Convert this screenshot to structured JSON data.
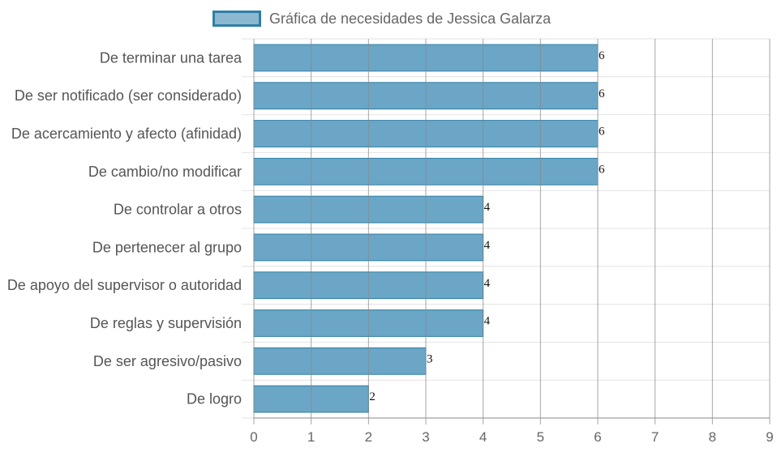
{
  "chart_data": {
    "type": "bar",
    "orientation": "horizontal",
    "categories": [
      "De terminar una tarea",
      "De ser notificado (ser considerado)",
      "De acercamiento y afecto (afinidad)",
      "De cambio/no modificar",
      "De controlar a otros",
      "De pertenecer al grupo",
      "De apoyo del supervisor o autoridad",
      "De reglas y supervisión",
      "De ser agresivo/pasivo",
      "De logro"
    ],
    "series": [
      {
        "name": "Gráfica de necesidades de Jessica Galarza",
        "values": [
          6,
          6,
          6,
          6,
          4,
          4,
          4,
          4,
          3,
          2
        ]
      }
    ],
    "xlim": [
      0,
      9
    ],
    "x_ticks": [
      0,
      1,
      2,
      3,
      4,
      5,
      6,
      7,
      8,
      9
    ],
    "grid": true,
    "legend_position": "top",
    "data_labels": true,
    "colors": {
      "bar_fill": "#6ba6c6",
      "bar_border": "#2f7fa6",
      "legend_fill": "#8db8d1",
      "grid": "#e3e3e3",
      "axis": "#888888"
    }
  }
}
